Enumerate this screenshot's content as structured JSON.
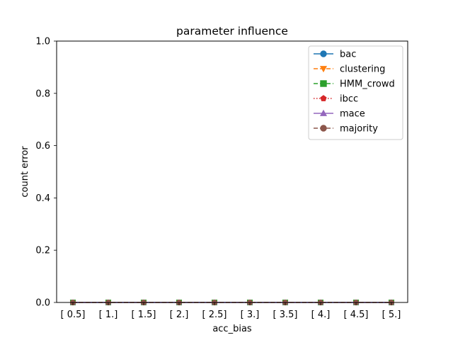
{
  "chart_data": {
    "type": "line",
    "title": "parameter influence",
    "xlabel": "acc_bias",
    "ylabel": "count error",
    "categories": [
      "[ 0.5]",
      "[ 1.]",
      "[ 1.5]",
      "[ 2.]",
      "[ 2.5]",
      "[ 3.]",
      "[ 3.5]",
      "[ 4.]",
      "[ 4.5]",
      "[ 5.]"
    ],
    "ylim": [
      0,
      1.0
    ],
    "yticks": [
      "0.0",
      "0.2",
      "0.4",
      "0.6",
      "0.8",
      "1.0"
    ],
    "grid": false,
    "legend_position": "top-right",
    "series": [
      {
        "name": "bac",
        "values": [
          0,
          0,
          0,
          0,
          0,
          0,
          0,
          0,
          0,
          0
        ],
        "color": "#1f77b4",
        "marker": "circle",
        "dash": "solid"
      },
      {
        "name": "clustering",
        "values": [
          0,
          0,
          0,
          0,
          0,
          0,
          0,
          0,
          0,
          0
        ],
        "color": "#ff7f0e",
        "marker": "triangle-down",
        "dash": "dashed"
      },
      {
        "name": "HMM_crowd",
        "values": [
          0,
          0,
          0,
          0,
          0,
          0,
          0,
          0,
          0,
          0
        ],
        "color": "#2ca02c",
        "marker": "square",
        "dash": "dashed"
      },
      {
        "name": "ibcc",
        "values": [
          0,
          0,
          0,
          0,
          0,
          0,
          0,
          0,
          0,
          0
        ],
        "color": "#d62728",
        "marker": "pentagon",
        "dash": "dotted"
      },
      {
        "name": "mace",
        "values": [
          0,
          0,
          0,
          0,
          0,
          0,
          0,
          0,
          0,
          0
        ],
        "color": "#9467bd",
        "marker": "triangle-up",
        "dash": "solid"
      },
      {
        "name": "majority",
        "values": [
          0,
          0,
          0,
          0,
          0,
          0,
          0,
          0,
          0,
          0
        ],
        "color": "#8c564b",
        "marker": "circle",
        "dash": "dashed"
      }
    ]
  }
}
